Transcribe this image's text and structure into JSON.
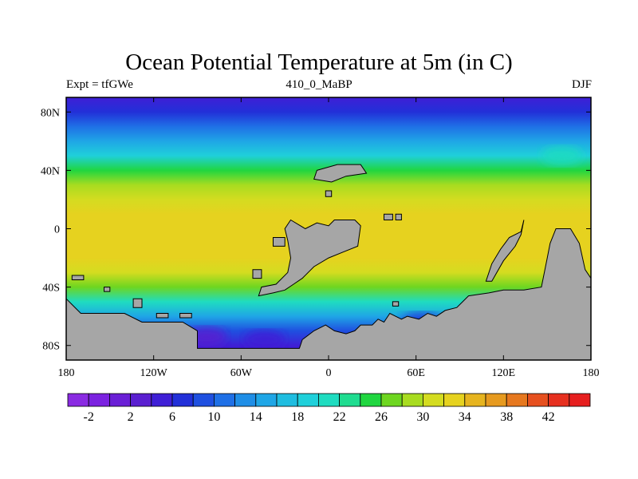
{
  "chart_data": {
    "type": "heatmap",
    "title": "Ocean Potential Temperature at 5m (in C)",
    "left_subtitle": "Expt = tfGWe",
    "center_subtitle": "410_0_MaBP",
    "right_subtitle": "DJF",
    "x_ticks": [
      {
        "value": -180,
        "label": "180"
      },
      {
        "value": -120,
        "label": "120W"
      },
      {
        "value": -60,
        "label": "60W"
      },
      {
        "value": 0,
        "label": "0"
      },
      {
        "value": 60,
        "label": "60E"
      },
      {
        "value": 120,
        "label": "120E"
      },
      {
        "value": 180,
        "label": "180"
      }
    ],
    "y_ticks": [
      {
        "value": 80,
        "label": "80N"
      },
      {
        "value": 40,
        "label": "40N"
      },
      {
        "value": 0,
        "label": "0"
      },
      {
        "value": -40,
        "label": "40S"
      },
      {
        "value": -80,
        "label": "80S"
      }
    ],
    "xlim": [
      -180,
      180
    ],
    "ylim": [
      -90,
      90
    ],
    "colorbar": {
      "levels": [
        -4,
        -2,
        0,
        2,
        4,
        6,
        8,
        10,
        12,
        14,
        16,
        18,
        20,
        22,
        24,
        26,
        28,
        30,
        32,
        34,
        36,
        38,
        40,
        42,
        44
      ],
      "labeled": [
        -2,
        2,
        6,
        10,
        14,
        18,
        22,
        26,
        30,
        34,
        38,
        42
      ],
      "colors": [
        "#8a2be2",
        "#7b22e0",
        "#6a1fd6",
        "#5a1fd0",
        "#3f1fd6",
        "#2230d8",
        "#1f50e0",
        "#1f70e6",
        "#1f8ee6",
        "#1fa6e6",
        "#1fbde0",
        "#1fd0da",
        "#1fdcc0",
        "#1fdc90",
        "#20d640",
        "#6ed620",
        "#a8dc20",
        "#d4dc20",
        "#e6d21f",
        "#e6b41f",
        "#e69a1f",
        "#e6781f",
        "#e6501f",
        "#e6301f",
        "#e61f1f"
      ]
    },
    "zonal_mean_temperature": [
      {
        "lat": 90,
        "value": 5
      },
      {
        "lat": 80,
        "value": 6
      },
      {
        "lat": 70,
        "value": 10
      },
      {
        "lat": 60,
        "value": 14
      },
      {
        "lat": 50,
        "value": 19
      },
      {
        "lat": 40,
        "value": 24
      },
      {
        "lat": 30,
        "value": 28
      },
      {
        "lat": 20,
        "value": 31
      },
      {
        "lat": 10,
        "value": 32
      },
      {
        "lat": 0,
        "value": 33
      },
      {
        "lat": -10,
        "value": 33
      },
      {
        "lat": -20,
        "value": 32
      },
      {
        "lat": -30,
        "value": 30
      },
      {
        "lat": -40,
        "value": 26
      },
      {
        "lat": -50,
        "value": 20
      },
      {
        "lat": -60,
        "value": 14
      },
      {
        "lat": -70,
        "value": 9
      },
      {
        "lat": -80,
        "value": 5
      },
      {
        "lat": -90,
        "value": 5
      }
    ],
    "land_color": "#a6a6a6",
    "land_masks": [
      {
        "name": "antarctica-gondwana",
        "points": [
          [
            -180,
            -48
          ],
          [
            -176,
            -52
          ],
          [
            -170,
            -58
          ],
          [
            -140,
            -58
          ],
          [
            -128,
            -64
          ],
          [
            -100,
            -64
          ],
          [
            -90,
            -70
          ],
          [
            -90,
            -82
          ],
          [
            -20,
            -82
          ],
          [
            -18,
            -76
          ],
          [
            -10,
            -70
          ],
          [
            -2,
            -66
          ],
          [
            4,
            -70
          ],
          [
            12,
            -72
          ],
          [
            18,
            -70
          ],
          [
            22,
            -66
          ],
          [
            30,
            -66
          ],
          [
            34,
            -62
          ],
          [
            38,
            -64
          ],
          [
            42,
            -58
          ],
          [
            50,
            -62
          ],
          [
            54,
            -60
          ],
          [
            62,
            -62
          ],
          [
            68,
            -58
          ],
          [
            74,
            -60
          ],
          [
            80,
            -56
          ],
          [
            88,
            -54
          ],
          [
            96,
            -46
          ],
          [
            110,
            -44
          ],
          [
            120,
            -42
          ],
          [
            134,
            -42
          ],
          [
            146,
            -40
          ],
          [
            150,
            -20
          ],
          [
            152,
            -10
          ],
          [
            156,
            0
          ],
          [
            166,
            0
          ],
          [
            172,
            -10
          ],
          [
            176,
            -28
          ],
          [
            180,
            -34
          ],
          [
            180,
            -90
          ],
          [
            -180,
            -90
          ]
        ]
      },
      {
        "name": "south-china",
        "points": [
          [
            -8,
            40
          ],
          [
            6,
            44
          ],
          [
            22,
            44
          ],
          [
            26,
            38
          ],
          [
            12,
            36
          ],
          [
            2,
            32
          ],
          [
            -10,
            34
          ]
        ]
      },
      {
        "name": "laurentia-africa",
        "points": [
          [
            -26,
            6
          ],
          [
            -16,
            0
          ],
          [
            -8,
            4
          ],
          [
            0,
            2
          ],
          [
            4,
            6
          ],
          [
            18,
            6
          ],
          [
            22,
            2
          ],
          [
            20,
            -12
          ],
          [
            10,
            -16
          ],
          [
            0,
            -20
          ],
          [
            -10,
            -26
          ],
          [
            -18,
            -34
          ],
          [
            -24,
            -38
          ],
          [
            -30,
            -42
          ],
          [
            -38,
            -44
          ],
          [
            -48,
            -46
          ],
          [
            -46,
            -40
          ],
          [
            -36,
            -38
          ],
          [
            -28,
            -30
          ],
          [
            -26,
            -20
          ],
          [
            -28,
            -8
          ],
          [
            -30,
            0
          ]
        ]
      },
      {
        "name": "east-gondwana-arc",
        "points": [
          [
            108,
            -36
          ],
          [
            112,
            -24
          ],
          [
            118,
            -14
          ],
          [
            124,
            -6
          ],
          [
            132,
            -2
          ],
          [
            134,
            6
          ],
          [
            132,
            -4
          ],
          [
            128,
            -12
          ],
          [
            120,
            -22
          ],
          [
            112,
            -36
          ]
        ]
      },
      {
        "name": "small-island-1",
        "points": [
          [
            -38,
            -6
          ],
          [
            -30,
            -6
          ],
          [
            -30,
            -12
          ],
          [
            -38,
            -12
          ]
        ]
      },
      {
        "name": "small-island-2",
        "points": [
          [
            -52,
            -28
          ],
          [
            -46,
            -28
          ],
          [
            -46,
            -34
          ],
          [
            -52,
            -34
          ]
        ]
      },
      {
        "name": "small-island-3",
        "points": [
          [
            -176,
            -32
          ],
          [
            -168,
            -32
          ],
          [
            -168,
            -35
          ],
          [
            -176,
            -35
          ]
        ]
      },
      {
        "name": "small-island-4",
        "points": [
          [
            -154,
            -40
          ],
          [
            -150,
            -40
          ],
          [
            -150,
            -43
          ],
          [
            -154,
            -43
          ]
        ]
      },
      {
        "name": "small-island-5",
        "points": [
          [
            -134,
            -48
          ],
          [
            -128,
            -48
          ],
          [
            -128,
            -54
          ],
          [
            -134,
            -54
          ]
        ]
      },
      {
        "name": "small-island-6",
        "points": [
          [
            -118,
            -58
          ],
          [
            -110,
            -58
          ],
          [
            -110,
            -61
          ],
          [
            -118,
            -61
          ]
        ]
      },
      {
        "name": "small-island-7",
        "points": [
          [
            -102,
            -58
          ],
          [
            -94,
            -58
          ],
          [
            -94,
            -61
          ],
          [
            -102,
            -61
          ]
        ]
      },
      {
        "name": "small-island-8",
        "points": [
          [
            38,
            10
          ],
          [
            44,
            10
          ],
          [
            44,
            6
          ],
          [
            38,
            6
          ]
        ]
      },
      {
        "name": "small-island-9",
        "points": [
          [
            46,
            10
          ],
          [
            50,
            10
          ],
          [
            50,
            6
          ],
          [
            46,
            6
          ]
        ]
      },
      {
        "name": "small-island-10",
        "points": [
          [
            -2,
            26
          ],
          [
            2,
            26
          ],
          [
            2,
            22
          ],
          [
            -2,
            22
          ]
        ]
      },
      {
        "name": "small-island-11",
        "points": [
          [
            44,
            -50
          ],
          [
            48,
            -50
          ],
          [
            48,
            -53
          ],
          [
            44,
            -53
          ]
        ]
      }
    ],
    "cold_pools": [
      {
        "lon": -84,
        "lat": -74,
        "value": 2
      },
      {
        "lon": -44,
        "lat": -76,
        "value": 4
      },
      {
        "lon": 64,
        "lat": -64,
        "value": 6
      },
      {
        "lon": 160,
        "lat": 50,
        "value": 20
      }
    ]
  }
}
